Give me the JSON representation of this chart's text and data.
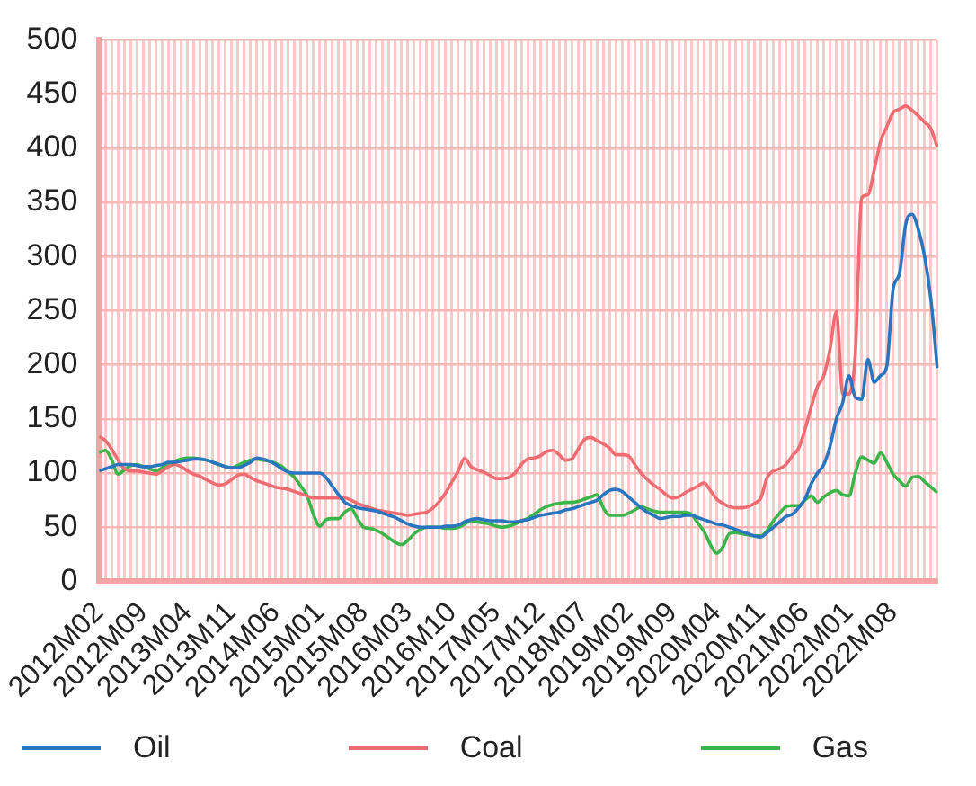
{
  "chart_data": {
    "type": "line",
    "categories": [
      "2012M02",
      null,
      null,
      null,
      null,
      null,
      null,
      "2012M09",
      null,
      null,
      null,
      null,
      null,
      null,
      "2013M04",
      null,
      null,
      null,
      null,
      null,
      null,
      "2013M11",
      null,
      null,
      null,
      null,
      null,
      null,
      "2014M06",
      null,
      null,
      null,
      null,
      null,
      null,
      "2015M01",
      null,
      null,
      null,
      null,
      null,
      null,
      "2015M08",
      null,
      null,
      null,
      null,
      null,
      null,
      "2016M03",
      null,
      null,
      null,
      null,
      null,
      null,
      "2016M10",
      null,
      null,
      null,
      null,
      null,
      null,
      "2017M05",
      null,
      null,
      null,
      null,
      null,
      null,
      "2017M12",
      null,
      null,
      null,
      null,
      null,
      null,
      "2018M07",
      null,
      null,
      null,
      null,
      null,
      null,
      "2019M02",
      null,
      null,
      null,
      null,
      null,
      null,
      "2019M09",
      null,
      null,
      null,
      null,
      null,
      null,
      "2020M04",
      null,
      null,
      null,
      null,
      null,
      null,
      "2020M11",
      null,
      null,
      null,
      null,
      null,
      null,
      "2021M06",
      null,
      null,
      null,
      null,
      null,
      null,
      "2022M01",
      null,
      null,
      null,
      null,
      null,
      null,
      "2022M08",
      null,
      null,
      null,
      null,
      null,
      null,
      null
    ],
    "series": [
      {
        "name": "Oil",
        "color": "#2a75bf",
        "values": [
          102,
          104,
          106,
          108,
          108,
          108,
          107,
          106,
          106,
          107,
          108,
          110,
          110,
          111,
          112,
          113,
          113,
          112,
          110,
          108,
          106,
          105,
          105,
          107,
          110,
          114,
          113,
          111,
          108,
          104,
          101,
          100,
          100,
          100,
          100,
          100,
          96,
          88,
          80,
          73,
          70,
          68,
          67,
          66,
          65,
          63,
          61,
          59,
          56,
          53,
          51,
          50,
          50,
          50,
          50,
          51,
          51,
          52,
          55,
          57,
          58,
          57,
          56,
          56,
          56,
          55,
          55,
          56,
          57,
          59,
          61,
          62,
          63,
          64,
          66,
          67,
          69,
          71,
          73,
          75,
          80,
          84,
          85,
          83,
          78,
          73,
          68,
          64,
          61,
          58,
          59,
          60,
          60,
          61,
          61,
          59,
          57,
          55,
          53,
          52,
          50,
          48,
          46,
          44,
          42,
          41,
          45,
          50,
          55,
          60,
          62,
          68,
          76,
          90,
          100,
          108,
          125,
          150,
          165,
          190,
          170,
          168,
          205,
          184,
          190,
          199,
          270,
          284,
          330,
          339,
          325,
          300,
          260,
          197
        ]
      },
      {
        "name": "Coal",
        "color": "#ef6c72",
        "values": [
          134,
          130,
          122,
          112,
          104,
          102,
          102,
          101,
          100,
          99,
          102,
          106,
          108,
          106,
          102,
          99,
          97,
          94,
          91,
          89,
          90,
          94,
          98,
          99,
          96,
          93,
          91,
          89,
          87,
          86,
          85,
          83,
          81,
          79,
          77,
          77,
          77,
          77,
          77,
          77,
          75,
          72,
          70,
          68,
          66,
          65,
          64,
          63,
          62,
          61,
          62,
          63,
          64,
          68,
          74,
          82,
          92,
          102,
          114,
          106,
          103,
          101,
          98,
          95,
          95,
          96,
          100,
          108,
          113,
          114,
          116,
          120,
          121,
          117,
          112,
          113,
          122,
          131,
          133,
          130,
          127,
          123,
          117,
          117,
          116,
          108,
          100,
          94,
          89,
          85,
          80,
          77,
          78,
          82,
          85,
          88,
          91,
          84,
          76,
          72,
          69,
          68,
          68,
          69,
          72,
          77,
          96,
          102,
          104,
          108,
          116,
          123,
          140,
          161,
          180,
          190,
          215,
          249,
          173,
          173,
          210,
          354,
          357,
          380,
          406,
          420,
          433,
          436,
          439,
          435,
          430,
          424,
          418,
          401
        ]
      },
      {
        "name": "Gas",
        "color": "#3bb54a",
        "values": [
          119,
          121,
          112,
          99,
          103,
          107,
          108,
          106,
          104,
          102,
          105,
          108,
          111,
          113,
          114,
          114,
          113,
          112,
          110,
          108,
          106,
          105,
          107,
          110,
          112,
          113,
          112,
          111,
          109,
          106,
          101,
          96,
          88,
          79,
          62,
          51,
          57,
          58,
          58,
          64,
          67,
          58,
          50,
          49,
          47,
          44,
          40,
          36,
          34,
          38,
          44,
          48,
          50,
          50,
          50,
          49,
          49,
          50,
          53,
          56,
          55,
          54,
          53,
          51,
          50,
          51,
          53,
          56,
          58,
          62,
          66,
          69,
          71,
          72,
          73,
          73,
          74,
          76,
          78,
          80,
          68,
          61,
          61,
          61,
          63,
          66,
          69,
          67,
          65,
          64,
          64,
          64,
          64,
          64,
          62,
          54,
          46,
          34,
          26,
          32,
          44,
          45,
          44,
          43,
          42,
          42,
          47,
          56,
          63,
          69,
          70,
          70,
          75,
          79,
          73,
          78,
          82,
          84,
          80,
          79,
          100,
          115,
          112,
          109,
          119,
          110,
          99,
          93,
          88,
          96,
          97,
          92,
          87,
          82
        ]
      }
    ],
    "ylim": [
      0,
      500
    ],
    "yticks": [
      0,
      50,
      100,
      150,
      200,
      250,
      300,
      350,
      400,
      450,
      500
    ],
    "grid": true,
    "legend": "bottom"
  }
}
